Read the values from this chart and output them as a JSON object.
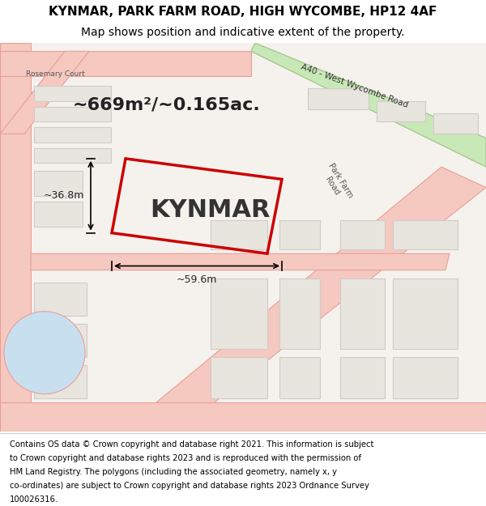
{
  "title_line1": "KYNMAR, PARK FARM ROAD, HIGH WYCOMBE, HP12 4AF",
  "title_line2": "Map shows position and indicative extent of the property.",
  "footer_lines": [
    "Contains OS data © Crown copyright and database right 2021. This information is subject",
    "to Crown copyright and database rights 2023 and is reproduced with the permission of",
    "HM Land Registry. The polygons (including the associated geometry, namely x, y",
    "co-ordinates) are subject to Crown copyright and database rights 2023 Ordnance Survey",
    "100026316."
  ],
  "property_label": "KYNMAR",
  "area_label": "~669m²/~0.165ac.",
  "dim_width": "~59.6m",
  "dim_height": "~36.8m",
  "map_bg": "#f5f2ee",
  "road_color_light": "#f5c8c0",
  "road_outline": "#e8a098",
  "property_outline": "#cc0000",
  "building_color": "#e8e4de",
  "building_edge": "#d0ccc8",
  "green_color": "#c8e8b8",
  "green_edge": "#a8c890",
  "water_color": "#c8dff0",
  "title_fontsize": 11,
  "subtitle_fontsize": 10,
  "label_fontsize": 22,
  "area_fontsize": 16,
  "footer_fontsize": 7.2
}
